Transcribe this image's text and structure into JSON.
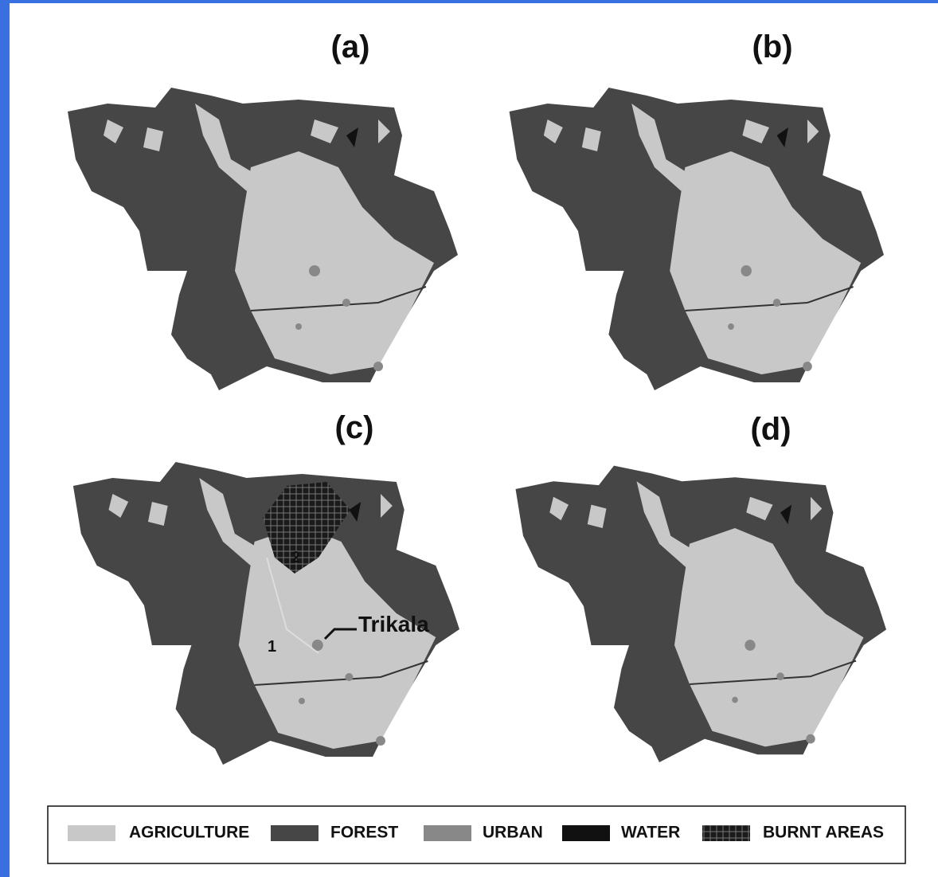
{
  "panels": [
    {
      "label": "(a)"
    },
    {
      "label": "(b)"
    },
    {
      "label": "(c)"
    },
    {
      "label": "(d)"
    }
  ],
  "annotations": {
    "trikala": "Trikala",
    "zone_1": "1",
    "zone_2": "2"
  },
  "legend": [
    {
      "label": "AGRICULTURE"
    },
    {
      "label": "FOREST"
    },
    {
      "label": "URBAN"
    },
    {
      "label": "WATER"
    },
    {
      "label": "BURNT AREAS"
    }
  ]
}
